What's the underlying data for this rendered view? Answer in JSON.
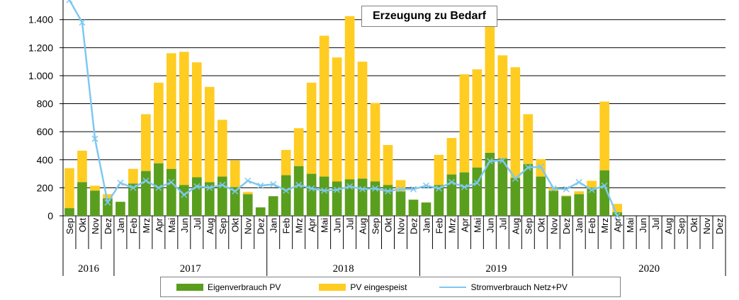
{
  "chart_data": {
    "type": "bar",
    "stacked": true,
    "title": "Erzeugung zu Bedarf",
    "ylim": [
      0,
      1540
    ],
    "yticks": [
      0,
      200,
      400,
      600,
      800,
      1000,
      1200,
      1400
    ],
    "ytick_labels": [
      "0",
      "200",
      "400",
      "600",
      "800",
      "1.000",
      "1.200",
      "1.400"
    ],
    "grid": true,
    "legend_position": "bottom",
    "categories": [
      "Sep",
      "Okt",
      "Nov",
      "Dez",
      "Jan",
      "Feb",
      "Mrz",
      "Apr",
      "Mai",
      "Jun",
      "Jul",
      "Aug",
      "Sep",
      "Okt",
      "Nov",
      "Dez",
      "Jan",
      "Feb",
      "Mrz",
      "Apr",
      "Mai",
      "Jun",
      "Jul",
      "Aug",
      "Sep",
      "Okt",
      "Nov",
      "Dez",
      "Jan",
      "Feb",
      "Mrz",
      "Apr",
      "Mai",
      "Jun",
      "Jul",
      "Aug",
      "Sep",
      "Okt",
      "Nov",
      "Dez",
      "Jan",
      "Feb",
      "Mrz",
      "Apr",
      "Mai",
      "Jun",
      "Jul",
      "Aug",
      "Sep",
      "Okt",
      "Nov",
      "Dez"
    ],
    "year_groups": [
      {
        "label": "2016",
        "count": 4
      },
      {
        "label": "2017",
        "count": 12
      },
      {
        "label": "2018",
        "count": 12
      },
      {
        "label": "2019",
        "count": 12
      },
      {
        "label": "2020",
        "count": 12
      }
    ],
    "series": [
      {
        "name": "Eigenverbrauch PV",
        "kind": "bar",
        "color": "#5A9E1E",
        "values": [
          55,
          240,
          180,
          125,
          100,
          230,
          320,
          375,
          335,
          220,
          275,
          240,
          280,
          205,
          155,
          60,
          140,
          290,
          355,
          300,
          280,
          245,
          260,
          265,
          245,
          220,
          175,
          115,
          95,
          220,
          295,
          310,
          345,
          450,
          410,
          270,
          370,
          280,
          180,
          140,
          155,
          200,
          325,
          25,
          0,
          0,
          0,
          0,
          0,
          0,
          0,
          0
        ]
      },
      {
        "name": "PV eingespeist",
        "kind": "bar",
        "color": "#FFCC22",
        "values": [
          285,
          225,
          35,
          30,
          0,
          105,
          405,
          575,
          825,
          950,
          820,
          680,
          405,
          190,
          15,
          0,
          0,
          180,
          270,
          650,
          1005,
          885,
          1165,
          835,
          560,
          285,
          80,
          0,
          0,
          215,
          260,
          700,
          700,
          930,
          735,
          790,
          355,
          125,
          20,
          5,
          20,
          50,
          490,
          60,
          0,
          0,
          0,
          0,
          0,
          0,
          0,
          0
        ]
      },
      {
        "name": "Stromverbrauch Netz+PV",
        "kind": "line",
        "color": "#7EC8F0",
        "values": [
          1540,
          1380,
          550,
          95,
          235,
          200,
          250,
          200,
          240,
          150,
          210,
          200,
          220,
          175,
          250,
          215,
          225,
          180,
          220,
          195,
          180,
          185,
          210,
          190,
          195,
          175,
          190,
          190,
          215,
          195,
          240,
          205,
          235,
          390,
          395,
          265,
          345,
          350,
          195,
          190,
          240,
          185,
          215,
          0,
          null,
          null,
          null,
          null,
          null,
          null,
          null,
          null
        ]
      }
    ]
  }
}
